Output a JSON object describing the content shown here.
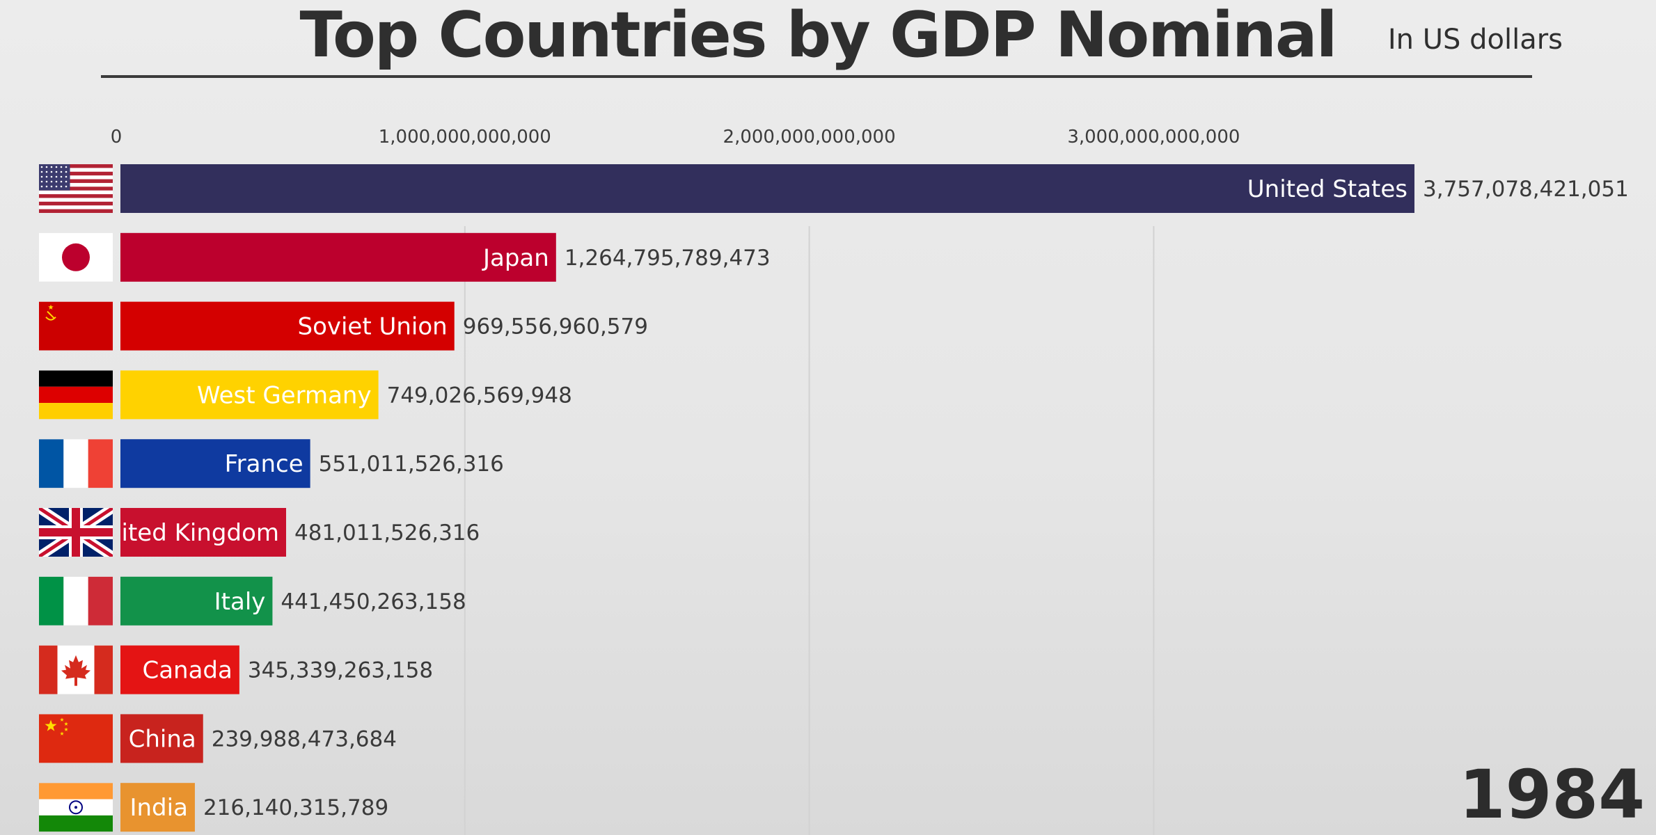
{
  "header": {
    "title": "Top Countries by GDP Nominal",
    "subtitle": "In US dollars"
  },
  "year": "1984",
  "chart_data": {
    "type": "bar",
    "orientation": "horizontal",
    "title": "Top Countries by GDP Nominal",
    "unit_label": "In US dollars",
    "xlim": [
      0,
      3757078421051
    ],
    "ticks": [
      {
        "value": 0,
        "label": "0"
      },
      {
        "value": 1000000000000,
        "label": "1,000,000,000,000"
      },
      {
        "value": 2000000000000,
        "label": "2,000,000,000,000"
      },
      {
        "value": 3000000000000,
        "label": "3,000,000,000,000"
      }
    ],
    "bars": [
      {
        "name": "United States",
        "value": 3757078421051,
        "value_label": "3,757,078,421,051",
        "color": "#322f5c",
        "label_color": "#ffffff",
        "flag": "us"
      },
      {
        "name": "Japan",
        "value": 1264795789473,
        "value_label": "1,264,795,789,473",
        "color": "#bc002d",
        "label_color": "#ffffff",
        "flag": "jp"
      },
      {
        "name": "Soviet Union",
        "value": 969556960579,
        "value_label": "969,556,960,579",
        "color": "#d40000",
        "label_color": "#ffffff",
        "flag": "su"
      },
      {
        "name": "West Germany",
        "value": 749026569948,
        "value_label": "749,026,569,948",
        "color": "#ffd200",
        "label_color": "#ffffff",
        "flag": "de"
      },
      {
        "name": "France",
        "value": 551011526316,
        "value_label": "551,011,526,316",
        "color": "#0f3aa0",
        "label_color": "#ffffff",
        "flag": "fr"
      },
      {
        "name": "United Kingdom",
        "value": 481011526316,
        "value_label": "481,011,526,316",
        "color": "#c8102e",
        "label_color": "#ffffff",
        "flag": "gb"
      },
      {
        "name": "Italy",
        "value": 441450263158,
        "value_label": "441,450,263,158",
        "color": "#12924a",
        "label_color": "#ffffff",
        "flag": "it"
      },
      {
        "name": "Canada",
        "value": 345339263158,
        "value_label": "345,339,263,158",
        "color": "#e41414",
        "label_color": "#ffffff",
        "flag": "ca"
      },
      {
        "name": "China",
        "value": 239988473684,
        "value_label": "239,988,473,684",
        "color": "#c8231e",
        "label_color": "#ffffff",
        "flag": "cn"
      },
      {
        "name": "India",
        "value": 216140315789,
        "value_label": "216,140,315,789",
        "color": "#e8932f",
        "label_color": "#ffffff",
        "flag": "in"
      }
    ]
  }
}
